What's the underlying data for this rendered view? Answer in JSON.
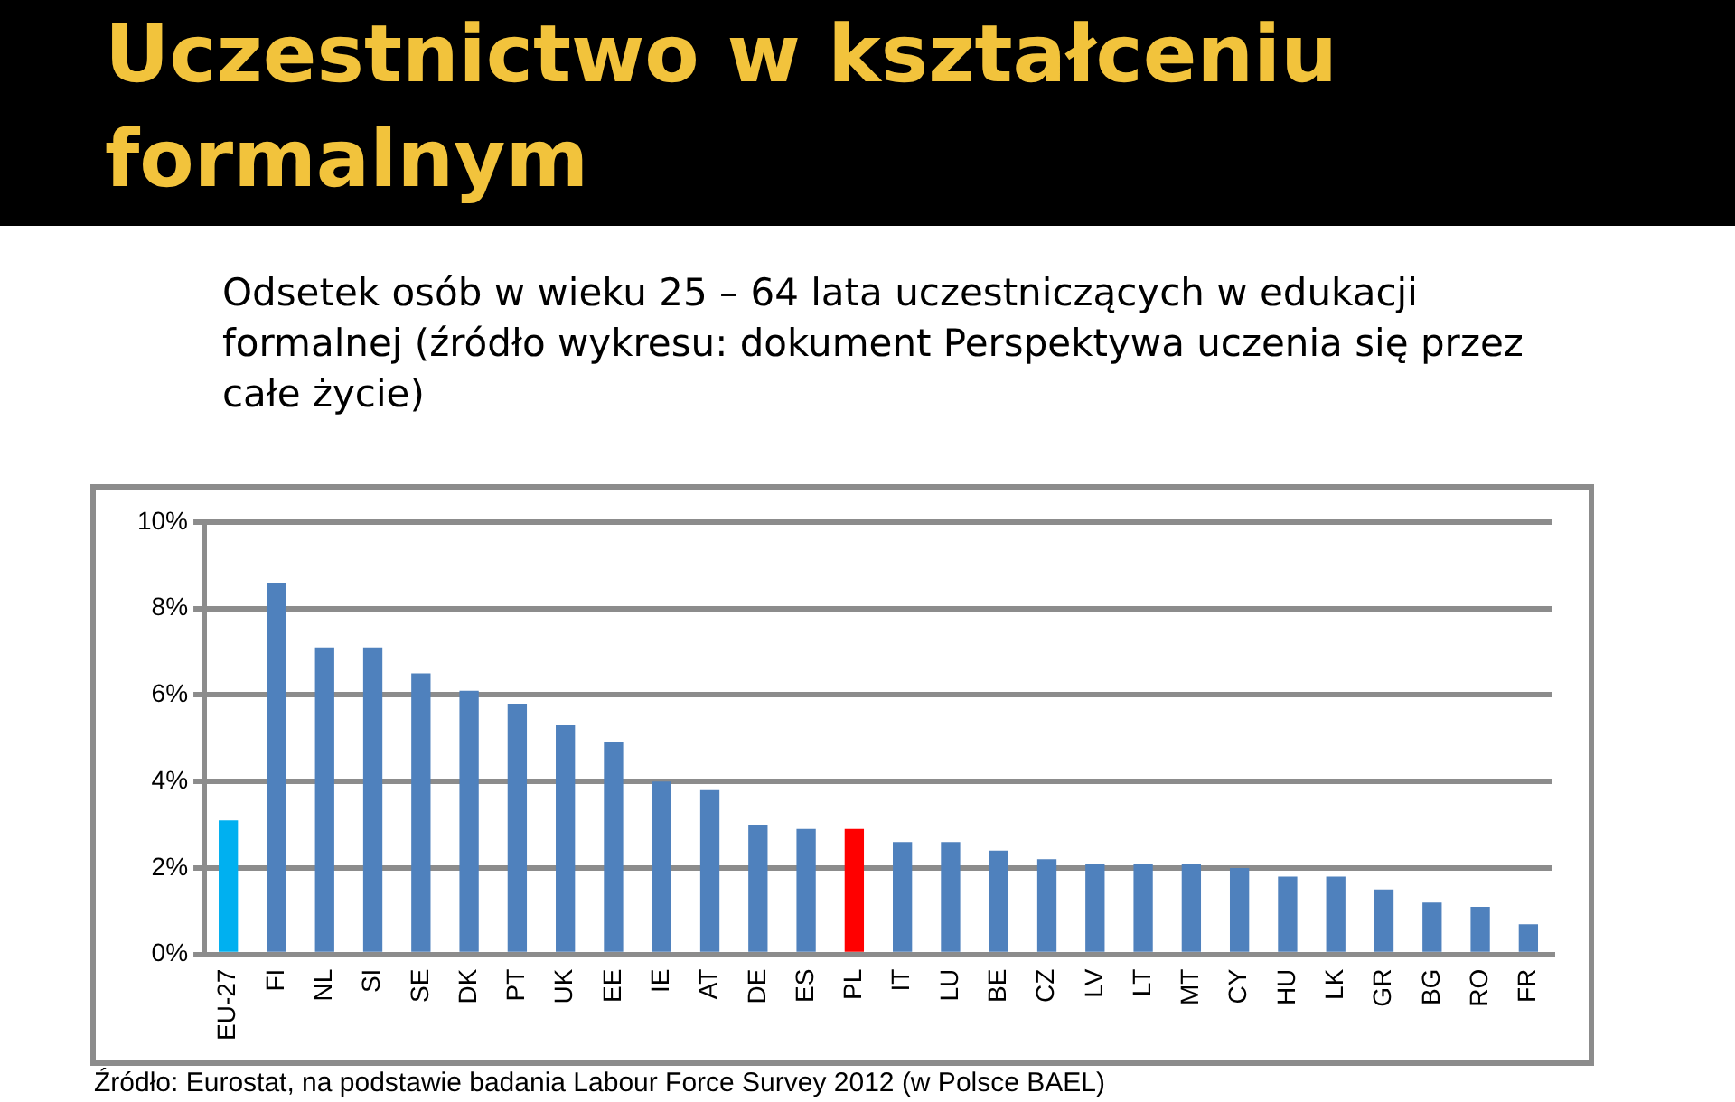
{
  "chart_data": {
    "type": "bar",
    "title": "Uczestnictwo w kształceniu formalnym",
    "subtitle": "Odsetek osób w wieku 25 – 64 lata uczestniczących w edukacji formalnej (źródło wykresu: dokument Perspektywa uczenia się przez całe życie)",
    "categories": [
      "EU-27",
      "FI",
      "NL",
      "SI",
      "SE",
      "DK",
      "PT",
      "UK",
      "EE",
      "IE",
      "AT",
      "DE",
      "ES",
      "PL",
      "IT",
      "LU",
      "BE",
      "CZ",
      "LV",
      "LT",
      "MT",
      "CY",
      "HU",
      "LK",
      "GR",
      "BG",
      "RO",
      "FR"
    ],
    "values": [
      3.1,
      8.6,
      7.1,
      7.1,
      6.5,
      6.1,
      5.8,
      5.3,
      4.9,
      4.0,
      3.8,
      3.0,
      2.9,
      2.9,
      2.6,
      2.6,
      2.4,
      2.2,
      2.1,
      2.1,
      2.1,
      2.0,
      1.8,
      1.8,
      1.5,
      1.2,
      1.1,
      0.7
    ],
    "colors": [
      "#00b0f0",
      "#4f81bd",
      "#4f81bd",
      "#4f81bd",
      "#4f81bd",
      "#4f81bd",
      "#4f81bd",
      "#4f81bd",
      "#4f81bd",
      "#4f81bd",
      "#4f81bd",
      "#4f81bd",
      "#4f81bd",
      "#ff0000",
      "#4f81bd",
      "#4f81bd",
      "#4f81bd",
      "#4f81bd",
      "#4f81bd",
      "#4f81bd",
      "#4f81bd",
      "#4f81bd",
      "#4f81bd",
      "#4f81bd",
      "#4f81bd",
      "#4f81bd",
      "#4f81bd",
      "#4f81bd"
    ],
    "ylim": [
      0,
      10
    ],
    "yticks": [
      {
        "value": 0,
        "label": "0%"
      },
      {
        "value": 2,
        "label": "2%"
      },
      {
        "value": 4,
        "label": "4%"
      },
      {
        "value": 6,
        "label": "6%"
      },
      {
        "value": 8,
        "label": "8%"
      },
      {
        "value": 10,
        "label": "10%"
      }
    ],
    "grid": "y",
    "legend": false,
    "annotations": [
      "Źródło: Eurostat, na podstawie badania Labour Force Survey 2012 (w Polsce BAEL)"
    ]
  }
}
